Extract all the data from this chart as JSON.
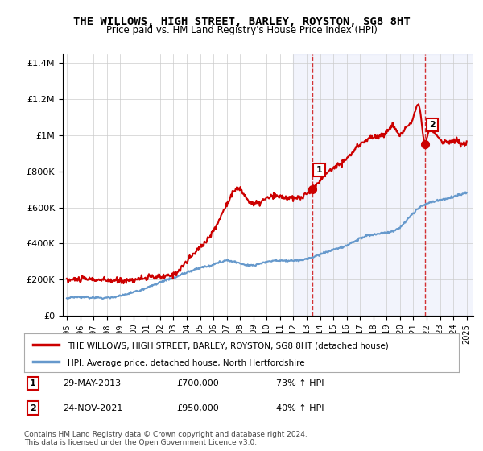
{
  "title": "THE WILLOWS, HIGH STREET, BARLEY, ROYSTON, SG8 8HT",
  "subtitle": "Price paid vs. HM Land Registry's House Price Index (HPI)",
  "ylabel_ticks": [
    "£0",
    "£200K",
    "£400K",
    "£600K",
    "£800K",
    "£1M",
    "£1.2M",
    "£1.4M"
  ],
  "ytick_values": [
    0,
    200000,
    400000,
    600000,
    800000,
    1000000,
    1200000,
    1400000
  ],
  "ylim": [
    0,
    1450000
  ],
  "xlim_start": 1995,
  "xlim_end": 2025.5,
  "xtick_years": [
    1995,
    1996,
    1997,
    1998,
    1999,
    2000,
    2001,
    2002,
    2003,
    2004,
    2005,
    2006,
    2007,
    2008,
    2009,
    2010,
    2011,
    2012,
    2013,
    2014,
    2015,
    2016,
    2017,
    2018,
    2019,
    2020,
    2021,
    2022,
    2023,
    2024,
    2025
  ],
  "red_color": "#cc0000",
  "blue_color": "#6699cc",
  "background_color": "#f0f4ff",
  "plot_bg": "#ffffff",
  "grid_color": "#cccccc",
  "transaction1_x": 2013.41,
  "transaction1_y": 700000,
  "transaction2_x": 2021.9,
  "transaction2_y": 950000,
  "legend_red_label": "THE WILLOWS, HIGH STREET, BARLEY, ROYSTON, SG8 8HT (detached house)",
  "legend_blue_label": "HPI: Average price, detached house, North Hertfordshire",
  "note1_label": "1",
  "note1_date": "29-MAY-2013",
  "note1_price": "£700,000",
  "note1_hpi": "73% ↑ HPI",
  "note2_label": "2",
  "note2_date": "24-NOV-2021",
  "note2_price": "£950,000",
  "note2_hpi": "40% ↑ HPI",
  "footer": "Contains HM Land Registry data © Crown copyright and database right 2024.\nThis data is licensed under the Open Government Licence v3.0."
}
